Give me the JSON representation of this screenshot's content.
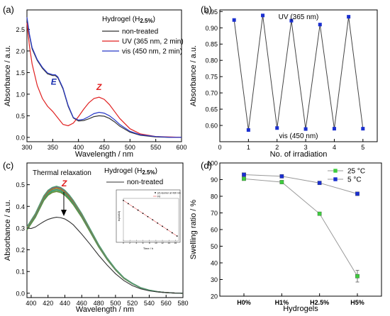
{
  "chart_data": [
    {
      "panel_label": "(a)",
      "type": "line",
      "xlabel": "Wavelength / nm",
      "ylabel": "Absorbance / a.u.",
      "xlim": [
        300,
        600
      ],
      "ylim": [
        -0.1,
        2.95
      ],
      "xticks": [
        300,
        350,
        400,
        450,
        500,
        550,
        600
      ],
      "yticks": [
        0.0,
        0.5,
        1.0,
        1.5,
        2.0,
        2.5
      ],
      "legend_title": "Hydrogel (H",
      "legend_title_sub": "2.5%",
      "legend_title_end": ")",
      "legend_position": "top-right",
      "annotations": [
        {
          "text": "E",
          "x": 352,
          "y": 1.22,
          "color": "#1a2fb0"
        },
        {
          "text": "Z",
          "x": 440,
          "y": 1.1,
          "color": "#e02020"
        }
      ],
      "series": [
        {
          "name": "non-treated",
          "color": "#333333",
          "x": [
            300,
            305,
            310,
            320,
            330,
            340,
            350,
            355,
            360,
            370,
            380,
            390,
            400,
            410,
            420,
            430,
            440,
            450,
            460,
            470,
            480,
            500,
            520,
            550,
            580,
            600
          ],
          "y": [
            2.75,
            2.35,
            2.05,
            1.78,
            1.6,
            1.47,
            1.43,
            1.43,
            1.38,
            1.12,
            0.72,
            0.45,
            0.38,
            0.39,
            0.43,
            0.48,
            0.5,
            0.49,
            0.44,
            0.36,
            0.26,
            0.12,
            0.05,
            0.01,
            0.0,
            0.0
          ]
        },
        {
          "name": "UV (365 nm, 2 min)",
          "color": "#e02020",
          "x": [
            300,
            305,
            310,
            320,
            330,
            340,
            350,
            360,
            370,
            380,
            390,
            400,
            410,
            420,
            430,
            440,
            450,
            460,
            470,
            480,
            500,
            520,
            550,
            580,
            600
          ],
          "y": [
            2.65,
            2.1,
            1.7,
            1.2,
            0.9,
            0.72,
            0.6,
            0.45,
            0.3,
            0.27,
            0.33,
            0.48,
            0.65,
            0.8,
            0.9,
            0.93,
            0.88,
            0.76,
            0.6,
            0.44,
            0.2,
            0.08,
            0.02,
            0.01,
            0.0
          ]
        },
        {
          "name": "vis (450 nm, 2 min)",
          "color": "#2838c8",
          "x": [
            300,
            305,
            310,
            320,
            330,
            340,
            350,
            355,
            360,
            370,
            380,
            390,
            400,
            410,
            420,
            430,
            440,
            450,
            460,
            470,
            480,
            500,
            520,
            550,
            580,
            600
          ],
          "y": [
            2.78,
            2.38,
            2.08,
            1.8,
            1.62,
            1.49,
            1.45,
            1.45,
            1.4,
            1.14,
            0.74,
            0.46,
            0.4,
            0.42,
            0.48,
            0.55,
            0.58,
            0.56,
            0.5,
            0.41,
            0.3,
            0.14,
            0.06,
            0.02,
            0.0,
            0.0
          ]
        }
      ]
    },
    {
      "panel_label": "(b)",
      "type": "line",
      "xlabel": "No. of irradiation",
      "ylabel": "Absorbance / a.u.",
      "xlim": [
        0,
        5.5
      ],
      "ylim": [
        0.55,
        0.955
      ],
      "xticks": [
        0,
        1,
        2,
        3,
        4,
        5
      ],
      "yticks": [
        0.6,
        0.65,
        0.7,
        0.75,
        0.8,
        0.85,
        0.9,
        0.95
      ],
      "top_label": "UV (365 nm)",
      "bottom_label": "vis (450 nm)",
      "series": [
        {
          "color": "#1a2fd0",
          "line_color": "#444444",
          "x": [
            0.5,
            1,
            1.5,
            2,
            2.5,
            3,
            3.5,
            4,
            4.5,
            5
          ],
          "y": [
            0.924,
            0.586,
            0.938,
            0.592,
            0.922,
            0.589,
            0.91,
            0.59,
            0.934,
            0.59
          ]
        }
      ]
    },
    {
      "panel_label": "(c)",
      "type": "line",
      "xlabel": "Wavelength / nm",
      "ylabel": "Absorbance / a.u.",
      "xlim": [
        395,
        580
      ],
      "ylim": [
        -0.02,
        0.6
      ],
      "xticks": [
        400,
        420,
        440,
        460,
        480,
        500,
        520,
        540,
        560,
        580
      ],
      "yticks": [
        0.0,
        0.1,
        0.2,
        0.3,
        0.4,
        0.5
      ],
      "title": "Thermal relaxation",
      "legend_title": "Hydrogel (H",
      "legend_title_sub": "2.5%",
      "legend_title_end": ")",
      "legend_entry": "non-treated",
      "annotation": "Z",
      "band_colors": [
        "#6a8a3a",
        "#4aa04a",
        "#3a9090",
        "#8a8a2a",
        "#c06020",
        "#7a50a0",
        "#50a070"
      ],
      "band_scales": [
        0.97,
        0.98,
        0.99,
        1.0,
        1.01,
        1.015,
        1.02
      ],
      "base_curve": {
        "x": [
          395,
          400,
          405,
          410,
          415,
          420,
          425,
          430,
          435,
          440,
          445,
          450,
          460,
          470,
          480,
          490,
          500,
          510,
          520,
          530,
          540,
          550,
          560,
          570,
          580
        ],
        "y": [
          0.3,
          0.33,
          0.36,
          0.4,
          0.44,
          0.465,
          0.478,
          0.483,
          0.478,
          0.465,
          0.445,
          0.42,
          0.36,
          0.29,
          0.22,
          0.16,
          0.11,
          0.07,
          0.045,
          0.025,
          0.014,
          0.007,
          0.003,
          0.001,
          0.0
        ]
      },
      "series": [
        {
          "name": "non-treated",
          "color": "#333333",
          "x": [
            395,
            400,
            405,
            410,
            415,
            420,
            425,
            430,
            435,
            440,
            445,
            450,
            460,
            470,
            480,
            490,
            500,
            510,
            520,
            530,
            540,
            550,
            560,
            570,
            580
          ],
          "y": [
            0.3,
            0.298,
            0.305,
            0.318,
            0.33,
            0.34,
            0.346,
            0.35,
            0.348,
            0.342,
            0.33,
            0.315,
            0.272,
            0.225,
            0.175,
            0.13,
            0.09,
            0.058,
            0.035,
            0.02,
            0.011,
            0.006,
            0.003,
            0.001,
            0.0
          ]
        }
      ],
      "inset": {
        "xlabel": "Time / h",
        "ylabel": "ln(A/A0)",
        "xticks": [
          0,
          2,
          4,
          6,
          8,
          10,
          12,
          14,
          16
        ],
        "xlim": [
          0,
          17
        ],
        "ylim": [
          -1.0,
          0.05
        ],
        "legend": [
          "(Z)-isomer at 430 nm",
          "Fit"
        ],
        "points": {
          "x": [
            0,
            1.5,
            3,
            4.5,
            6,
            7.5,
            9,
            10.5,
            12,
            13.5,
            15,
            16.5
          ],
          "y": [
            0.0,
            -0.08,
            -0.16,
            -0.24,
            -0.32,
            -0.4,
            -0.48,
            -0.56,
            -0.64,
            -0.72,
            -0.8,
            -0.88
          ]
        }
      }
    },
    {
      "panel_label": "(d)",
      "type": "line",
      "xlabel": "Hydrogels",
      "ylabel": "Swelling ratio / %",
      "ylim": [
        20,
        100
      ],
      "yticks": [
        20,
        30,
        40,
        50,
        60,
        70,
        80,
        90,
        100
      ],
      "categories": [
        "H0%",
        "H1%",
        "H2.5%",
        "H5%"
      ],
      "legend_position": "top-right",
      "series": [
        {
          "name": "25 °C",
          "color": "#3dcc3d",
          "values": [
            90.5,
            88.5,
            69.5,
            32.0
          ],
          "errors": [
            0.5,
            0.6,
            0.6,
            3.5
          ]
        },
        {
          "name": "5 °C",
          "color": "#1a2fd0",
          "values": [
            93.0,
            92.0,
            88.0,
            81.5
          ],
          "errors": [
            0.5,
            0.5,
            0.5,
            1.0
          ]
        }
      ]
    }
  ]
}
